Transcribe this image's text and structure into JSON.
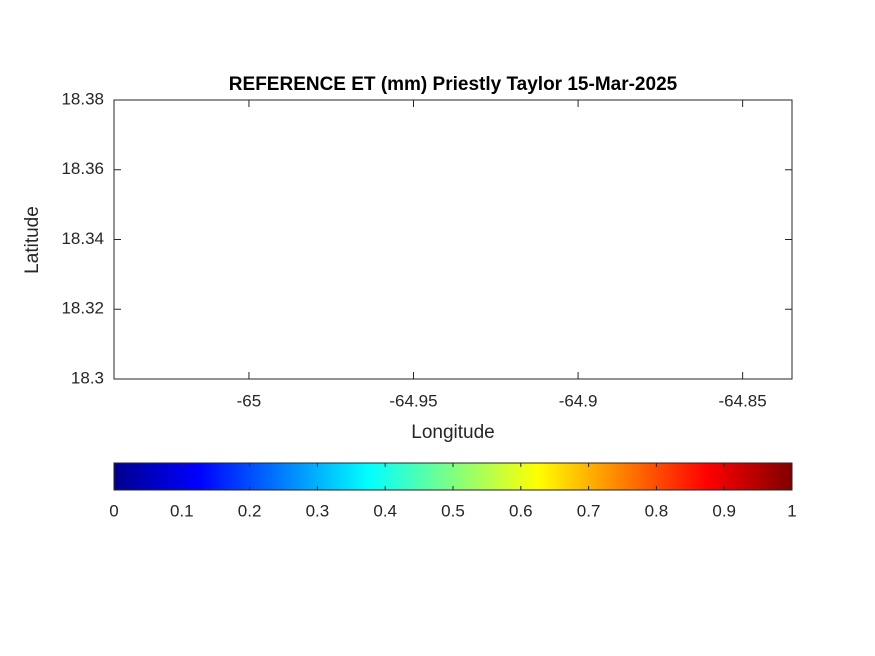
{
  "chart_data": {
    "type": "map",
    "title": "REFERENCE ET (mm) Priestly Taylor 15-Mar-2025",
    "xlabel": "Longitude",
    "ylabel": "Latitude",
    "xlim": [
      -65.041,
      -64.835
    ],
    "xticks": [
      -65,
      -64.95,
      -64.9,
      -64.85
    ],
    "ylim": [
      18.3,
      18.38
    ],
    "yticks": [
      18.3,
      18.32,
      18.34,
      18.36,
      18.38
    ],
    "colorbar": {
      "colormap": "jet",
      "clim": [
        0,
        1
      ],
      "ticks": [
        0,
        0.1,
        0.2,
        0.3,
        0.4,
        0.5,
        0.6,
        0.7,
        0.8,
        0.9,
        1
      ],
      "location": "south"
    }
  }
}
